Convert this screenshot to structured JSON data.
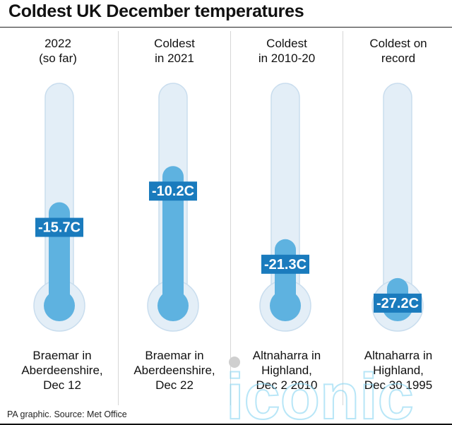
{
  "title": "Coldest UK December temperatures",
  "source": "PA graphic. Source: Met Office",
  "watermark": {
    "text": "iconic"
  },
  "colors": {
    "tube": "#e3eef7",
    "tube_stroke": "#c9ddee",
    "mercury": "#5eb2e0",
    "label_bg": "#1a7bbd",
    "text": "#111111"
  },
  "columns": [
    {
      "heading": [
        "2022",
        "(so far)"
      ],
      "location": [
        "Braemar in",
        "Aberdeenshire,",
        "Dec 12"
      ]
    },
    {
      "heading": [
        "Coldest",
        "in 2021"
      ],
      "location": [
        "Braemar in",
        "Aberdeenshire,",
        "Dec 22"
      ]
    },
    {
      "heading": [
        "Coldest",
        "in 2010-20"
      ],
      "location": [
        "Altnaharra in",
        "Highland,",
        "Dec 2 2010"
      ]
    },
    {
      "heading": [
        "Coldest on",
        "record"
      ],
      "location": [
        "Altnaharra in",
        "Highland,",
        "Dec 30 1995"
      ]
    }
  ],
  "chart_data": {
    "type": "bar",
    "title": "Coldest UK December temperatures",
    "categories": [
      "2022 (so far)",
      "Coldest in 2021",
      "Coldest in 2010-20",
      "Coldest on record"
    ],
    "values": [
      -15.7,
      -10.2,
      -21.3,
      -27.2
    ],
    "value_labels": [
      "-15.7C",
      "-10.2C",
      "-21.3C",
      "-27.2C"
    ],
    "unit": "C"
  }
}
